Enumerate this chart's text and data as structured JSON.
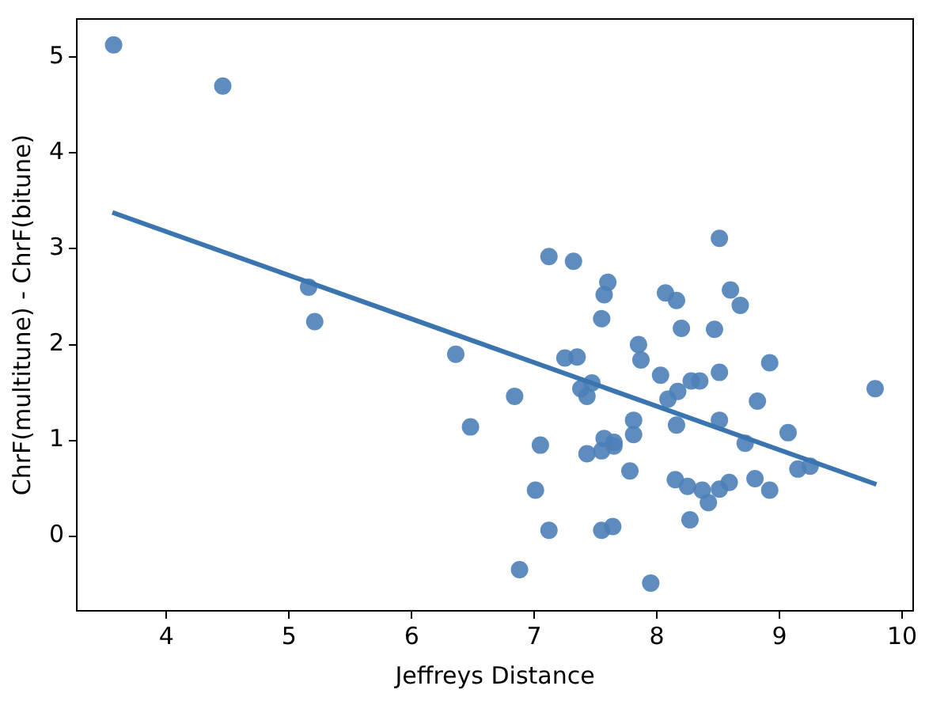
{
  "chart_data": {
    "type": "scatter",
    "xlabel": "Jeffreys Distance",
    "ylabel": "ChrF(multitune) - ChrF(bitune)",
    "xlim": [
      3.27,
      10.09
    ],
    "ylim": [
      -0.78,
      5.4
    ],
    "xticks": [
      4,
      5,
      6,
      7,
      8,
      9,
      10
    ],
    "yticks": [
      0,
      1,
      2,
      3,
      4,
      5
    ],
    "grid": false,
    "legend": false,
    "series": [
      {
        "marker": "circle",
        "color": "#4c7fb8",
        "x": [
          3.57,
          4.46,
          5.16,
          5.21,
          6.36,
          8.51,
          7.12,
          7.32,
          7.6,
          7.57,
          8.07,
          8.16,
          8.6,
          8.68,
          7.55,
          8.2,
          8.47,
          7.85,
          7.87,
          7.25,
          7.35,
          8.92,
          8.03,
          8.51,
          8.28,
          8.35,
          7.47,
          7.38,
          7.43,
          8.17,
          8.09,
          6.84,
          9.78,
          8.82,
          6.48,
          7.81,
          8.16,
          8.51,
          7.81,
          9.07,
          8.72,
          7.05,
          7.57,
          7.65,
          7.65,
          7.55,
          7.43,
          7.78,
          9.15,
          9.25,
          8.15,
          8.25,
          8.37,
          8.51,
          8.59,
          8.8,
          8.92,
          8.42,
          7.01,
          8.27,
          7.12,
          7.55,
          7.64,
          6.88,
          7.95
        ],
        "values": [
          5.13,
          4.7,
          2.6,
          2.24,
          1.9,
          3.11,
          2.92,
          2.87,
          2.65,
          2.52,
          2.54,
          2.46,
          2.57,
          2.41,
          2.27,
          2.17,
          2.16,
          2.0,
          1.84,
          1.86,
          1.87,
          1.81,
          1.68,
          1.71,
          1.62,
          1.62,
          1.6,
          1.54,
          1.46,
          1.51,
          1.43,
          1.46,
          1.54,
          1.41,
          1.14,
          1.21,
          1.16,
          1.21,
          1.06,
          1.08,
          0.97,
          0.95,
          1.02,
          0.98,
          0.94,
          0.89,
          0.86,
          0.68,
          0.7,
          0.73,
          0.59,
          0.52,
          0.48,
          0.49,
          0.56,
          0.6,
          0.48,
          0.35,
          0.48,
          0.17,
          0.06,
          0.06,
          0.1,
          -0.35,
          -0.49
        ]
      },
      {
        "type": "line",
        "color": "#3a75b0",
        "x": [
          3.56,
          9.79
        ],
        "values": [
          3.38,
          0.54
        ]
      }
    ]
  }
}
